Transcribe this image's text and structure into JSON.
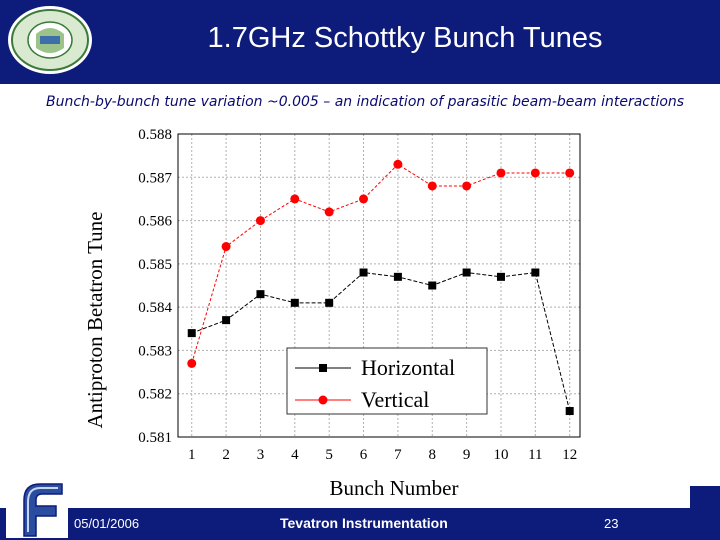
{
  "slide": {
    "title": "1.7GHz Schottky Bunch Tunes",
    "subtitle": "Bunch-by-bunch tune variation ~0.005 – an indication of parasitic beam-beam interactions"
  },
  "footer": {
    "date": "05/01/2006",
    "center": "Tevatron Instrumentation",
    "page": "23"
  },
  "colors": {
    "header": "#0d1b7a",
    "horizontal": "#000000",
    "vertical": "#ff0000",
    "grid": "#b0b0b0"
  },
  "chart_data": {
    "type": "line",
    "xlabel": "Bunch Number",
    "ylabel": "Antiproton Betatron Tune",
    "x": [
      1,
      2,
      3,
      4,
      5,
      6,
      7,
      8,
      9,
      10,
      11,
      12
    ],
    "xticks": [
      "1",
      "2",
      "3",
      "4",
      "5",
      "6",
      "7",
      "8",
      "9",
      "10",
      "11",
      "12"
    ],
    "yticks": [
      "0.581",
      "0.582",
      "0.583",
      "0.584",
      "0.585",
      "0.586",
      "0.587",
      "0.588"
    ],
    "ylim": [
      0.581,
      0.588
    ],
    "grid": true,
    "legend_position": "bottom-center",
    "series": [
      {
        "name": "Horizontal",
        "marker": "square",
        "color": "#000000",
        "values": [
          0.5834,
          0.5837,
          0.5843,
          0.5841,
          0.5841,
          0.5848,
          0.5847,
          0.5845,
          0.5848,
          0.5847,
          0.5848,
          0.5816
        ]
      },
      {
        "name": "Vertical",
        "marker": "circle",
        "color": "#ff0000",
        "values": [
          0.5827,
          0.5854,
          0.586,
          0.5865,
          0.5862,
          0.5865,
          0.5873,
          0.5868,
          0.5868,
          0.5871,
          0.5871,
          0.5871
        ]
      }
    ]
  }
}
